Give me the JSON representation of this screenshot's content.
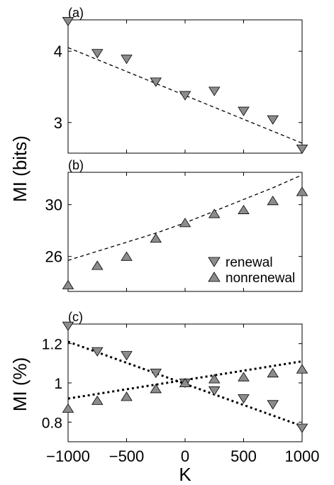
{
  "chart_data": [
    {
      "type": "scatter",
      "panel_label": "(a)",
      "ylabel": "",
      "xlabel": "",
      "xlim": [
        -1000,
        1000
      ],
      "ylim": [
        2.57,
        4.44
      ],
      "yticks": [
        3,
        4
      ],
      "ytick_labels": [
        "3",
        "4"
      ],
      "series": [
        {
          "name": "renewal",
          "marker": "triangle-down",
          "x": [
            -1000,
            -750,
            -500,
            -250,
            0,
            250,
            500,
            750,
            1000
          ],
          "y": [
            4.42,
            3.97,
            3.89,
            3.57,
            3.38,
            3.44,
            3.16,
            3.04,
            2.63
          ]
        }
      ],
      "fits": [
        {
          "style": "dashed",
          "x": [
            -1000,
            1000
          ],
          "y": [
            4.05,
            2.71
          ]
        }
      ]
    },
    {
      "type": "scatter",
      "panel_label": "(b)",
      "ylabel": "",
      "xlabel": "",
      "xlim": [
        -1000,
        1000
      ],
      "ylim": [
        23.3,
        32.5
      ],
      "yticks": [
        26,
        30
      ],
      "ytick_labels": [
        "26",
        "30"
      ],
      "legend": {
        "placement": "bottom-right",
        "entries": [
          "renewal",
          "nonrenewal"
        ]
      },
      "series": [
        {
          "name": "nonrenewal",
          "marker": "triangle-up",
          "x": [
            -1000,
            -750,
            -500,
            -250,
            0,
            250,
            500,
            750,
            1000
          ],
          "y": [
            23.8,
            25.3,
            26.0,
            27.4,
            28.6,
            29.3,
            29.6,
            30.3,
            31.0
          ]
        }
      ],
      "fits": [
        {
          "style": "dashed",
          "x": [
            -1000,
            -750,
            -500,
            -250,
            0,
            250,
            500,
            750,
            1000
          ],
          "y": [
            25.7,
            26.4,
            27.1,
            27.8,
            28.6,
            29.5,
            30.4,
            31.3,
            32.3
          ]
        }
      ]
    },
    {
      "type": "scatter",
      "panel_label": "(c)",
      "ylabel": "MI (%)",
      "xlabel": "K",
      "xlim": [
        -1000,
        1000
      ],
      "ylim": [
        0.7,
        1.3
      ],
      "yticks": [
        0.8,
        1,
        1.2
      ],
      "ytick_labels": [
        "0.8",
        "1",
        "1.2"
      ],
      "xticks": [
        -1000,
        -500,
        0,
        500,
        1000
      ],
      "xtick_labels": [
        "−1000",
        "−500",
        "0",
        "500",
        "1000"
      ],
      "series": [
        {
          "name": "renewal",
          "marker": "triangle-down",
          "x": [
            -1000,
            -750,
            -500,
            -250,
            0,
            250,
            500,
            750,
            1000
          ],
          "y": [
            1.29,
            1.16,
            1.14,
            1.05,
            1.0,
            0.96,
            0.92,
            0.89,
            0.77
          ]
        },
        {
          "name": "nonrenewal",
          "marker": "triangle-up",
          "x": [
            -1000,
            -750,
            -500,
            -250,
            0,
            250,
            500,
            750,
            1000
          ],
          "y": [
            0.87,
            0.91,
            0.93,
            0.97,
            1.0,
            1.02,
            1.03,
            1.05,
            1.07
          ]
        }
      ],
      "fits": [
        {
          "style": "dotted-bold",
          "x": [
            -1000,
            1000
          ],
          "y": [
            1.21,
            0.78
          ]
        },
        {
          "style": "dotted-bold",
          "x": [
            -1000,
            1000
          ],
          "y": [
            0.92,
            1.11
          ]
        }
      ]
    }
  ],
  "shared_ylabel": "MI (bits)",
  "colors": {
    "marker_fill": "#8c8c8c",
    "marker_stroke": "#000000",
    "axes": "#000000"
  }
}
